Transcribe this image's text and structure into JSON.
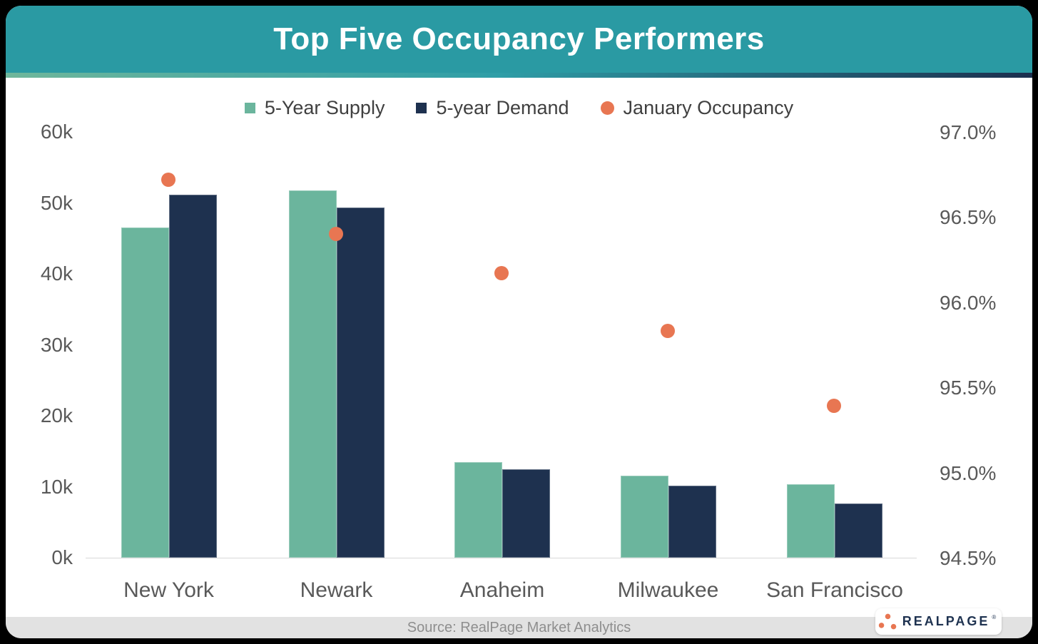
{
  "header": {
    "title": "Top Five Occupancy Performers"
  },
  "legend": {
    "items": [
      {
        "label": "5-Year Supply"
      },
      {
        "label": "5-year Demand"
      },
      {
        "label": "January Occupancy"
      }
    ]
  },
  "chart_data": {
    "type": "bar",
    "subtype": "grouped bars with scatter overlay, dual y-axes",
    "categories": [
      "New York",
      "Newark",
      "Anaheim",
      "Milwaukee",
      "San Francisco"
    ],
    "series": [
      {
        "name": "5-Year Supply",
        "render": "bar",
        "axis": "left",
        "color": "#6BB59D",
        "values": [
          46500,
          51800,
          13500,
          11600,
          10400
        ]
      },
      {
        "name": "5-year Demand",
        "render": "bar",
        "axis": "left",
        "color": "#1E314F",
        "values": [
          51200,
          49300,
          12500,
          10200,
          7600
        ]
      },
      {
        "name": "January Occupancy",
        "render": "scatter",
        "axis": "right",
        "color": "#E87652",
        "values": [
          96.72,
          96.4,
          96.17,
          95.83,
          95.39
        ]
      }
    ],
    "axes": {
      "left": {
        "tick_labels": [
          "60k",
          "50k",
          "40k",
          "30k",
          "20k",
          "10k",
          "0k"
        ],
        "min": 0,
        "max": 60000
      },
      "right": {
        "tick_labels": [
          "97.0%",
          "96.5%",
          "96.0%",
          "95.5%",
          "95.0%",
          "94.5%"
        ],
        "min": 94.5,
        "max": 97.0
      }
    },
    "grid": "baseline only",
    "legend_position": "top-center",
    "title": "Top Five Occupancy Performers"
  },
  "footer": {
    "source": "Source: RealPage Market Analytics",
    "logo_text": "REALPAGE",
    "logo_mark": "®"
  },
  "colors": {
    "header_teal": "#2A9AA3",
    "gradient": [
      "#6FB79B",
      "#2F9EA7",
      "#1C2F4E"
    ],
    "supply_green": "#6BB59D",
    "demand_navy": "#1E314F",
    "occupancy_orange": "#E87652",
    "axis_text": "#595959",
    "footer_bg": "#E2E2E2",
    "footer_text": "#8E8E8E",
    "baseline": "#D9D9D9"
  }
}
